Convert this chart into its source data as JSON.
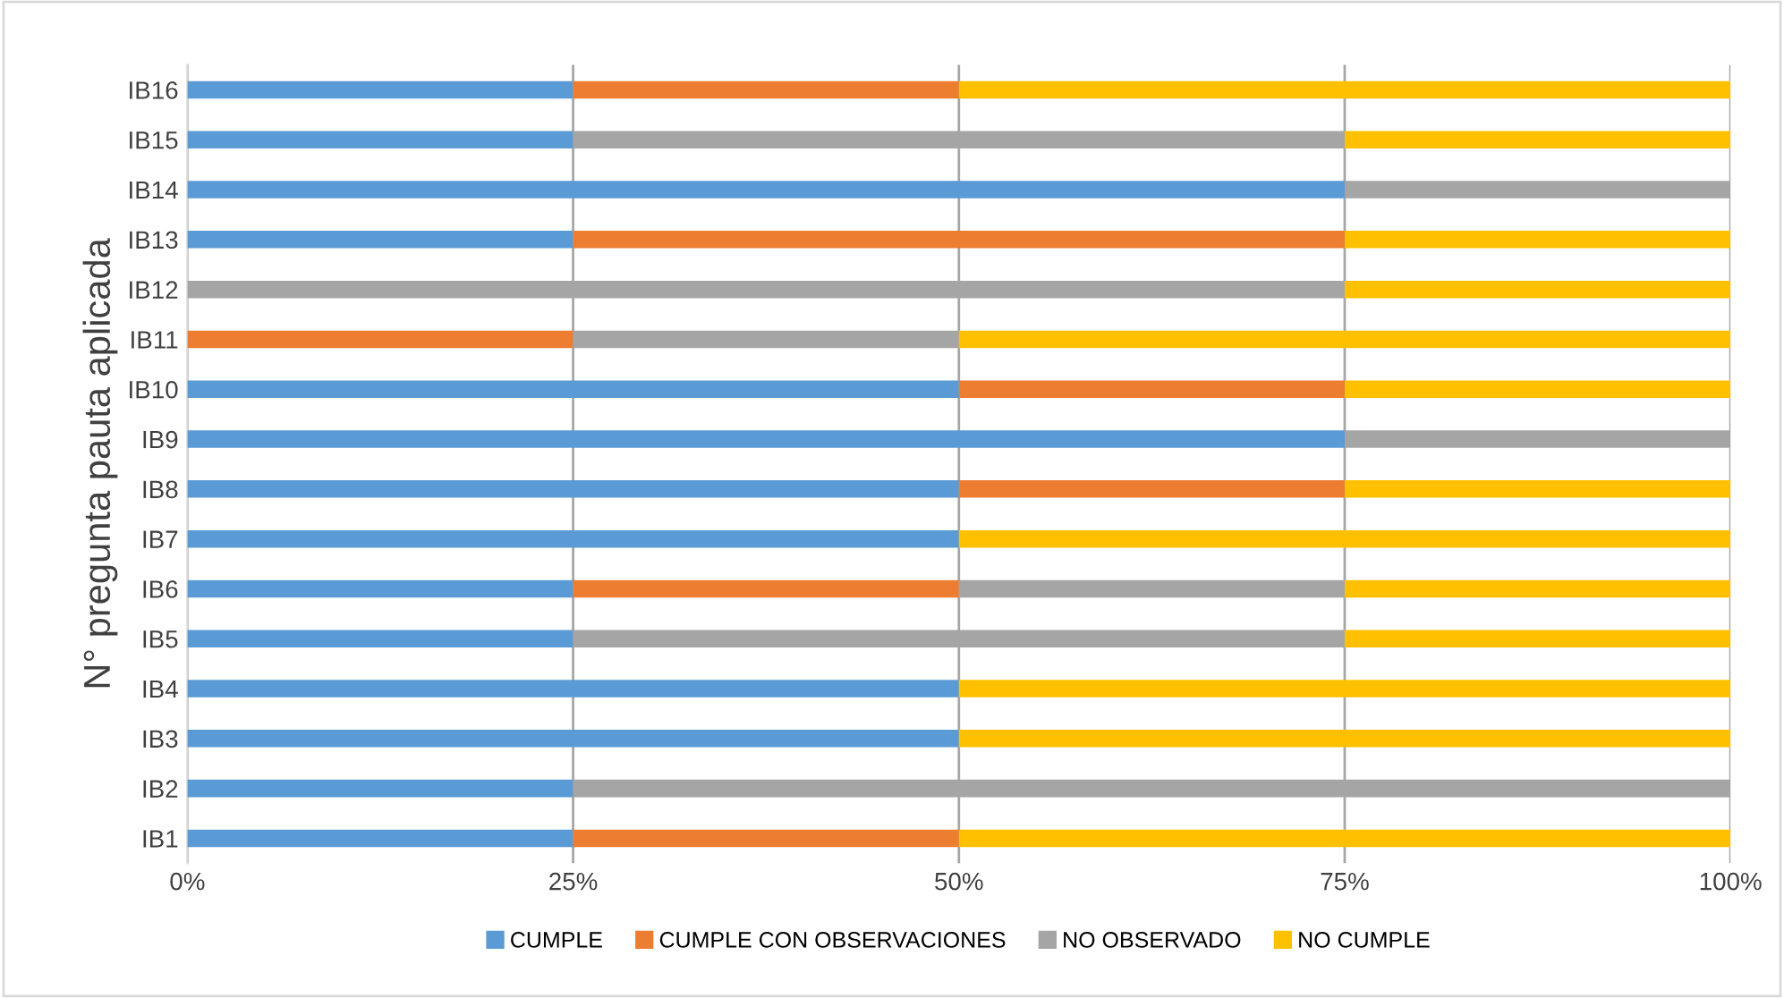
{
  "chart_data": {
    "type": "bar",
    "orientation": "horizontal",
    "stacked": true,
    "ylabel": "N° pregunta pauta aplicada",
    "categories": [
      "IB16",
      "IB15",
      "IB14",
      "IB13",
      "IB12",
      "IB11",
      "IB10",
      "IB9",
      "IB8",
      "IB7",
      "IB6",
      "IB5",
      "IB4",
      "IB3",
      "IB2",
      "IB1"
    ],
    "series": [
      {
        "name": "CUMPLE",
        "color": "#5b9bd5",
        "values": [
          25,
          25,
          75,
          25,
          0,
          0,
          50,
          75,
          50,
          50,
          25,
          25,
          50,
          50,
          25,
          25
        ]
      },
      {
        "name": "CUMPLE CON OBSERVACIONES",
        "color": "#ed7d31",
        "values": [
          25,
          0,
          0,
          50,
          0,
          25,
          25,
          0,
          25,
          0,
          25,
          0,
          0,
          0,
          0,
          25
        ]
      },
      {
        "name": "NO OBSERVADO",
        "color": "#a5a5a5",
        "values": [
          0,
          50,
          25,
          0,
          75,
          25,
          0,
          25,
          0,
          0,
          25,
          50,
          0,
          0,
          75,
          0
        ]
      },
      {
        "name": "NO CUMPLE",
        "color": "#ffc000",
        "values": [
          50,
          25,
          0,
          25,
          25,
          50,
          25,
          0,
          25,
          50,
          25,
          25,
          50,
          50,
          0,
          50
        ]
      }
    ],
    "xlim": [
      0,
      100
    ],
    "xticks": [
      {
        "value": 0,
        "label": "0%"
      },
      {
        "value": 25,
        "label": "25%"
      },
      {
        "value": 50,
        "label": "50%"
      },
      {
        "value": 75,
        "label": "75%"
      },
      {
        "value": 100,
        "label": "100%"
      }
    ],
    "grid": "x",
    "legend": "bottom"
  }
}
